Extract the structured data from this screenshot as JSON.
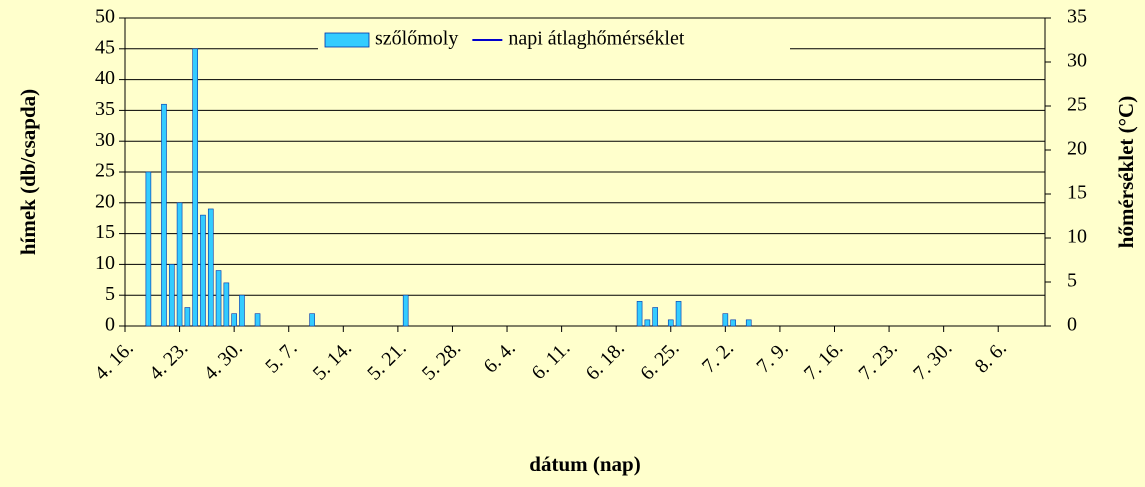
{
  "chart_data": {
    "type": "bar",
    "x": [
      "4. 19.",
      "4. 21.",
      "4. 22.",
      "4. 23.",
      "4. 24.",
      "4. 25.",
      "4. 26.",
      "4. 27.",
      "4. 28.",
      "4. 29.",
      "4. 30.",
      "5. 1.",
      "5. 3.",
      "5. 10.",
      "5. 22.",
      "6. 21.",
      "6. 22.",
      "6. 23.",
      "6. 25.",
      "6. 26.",
      "7. 2.",
      "7. 3.",
      "7. 5."
    ],
    "series": [
      {
        "name": "szőlőmoly",
        "color": "#33ccff",
        "values": [
          25,
          36,
          10,
          20,
          3,
          45,
          18,
          19,
          9,
          7,
          2,
          5,
          2,
          2,
          5,
          4,
          1,
          3,
          1,
          4,
          2,
          1,
          1
        ]
      },
      {
        "name": "napi átlaghőmérséklet",
        "color": "#0000cc",
        "axis": "y2",
        "values": [
          null,
          null,
          null,
          null,
          null,
          null,
          null,
          null,
          null,
          null,
          null,
          null,
          null,
          null,
          null,
          null,
          null,
          null,
          null,
          null,
          null,
          null,
          null
        ]
      }
    ],
    "xlim": [
      "4. 16.",
      "8. 12."
    ],
    "xticks": [
      "4. 16.",
      "4. 23.",
      "4. 30.",
      "5. 7.",
      "5. 14.",
      "5. 21.",
      "5. 28.",
      "6. 4.",
      "6. 11.",
      "6. 18.",
      "6. 25.",
      "7. 2.",
      "7. 9.",
      "7. 16.",
      "7. 23.",
      "7. 30.",
      "8. 6."
    ],
    "ylim": [
      0,
      50
    ],
    "yticks": [
      0,
      5,
      10,
      15,
      20,
      25,
      30,
      35,
      40,
      45,
      50
    ],
    "y2lim": [
      0,
      35
    ],
    "y2ticks": [
      0,
      5,
      10,
      15,
      20,
      25,
      30,
      35
    ],
    "ylabel": "hímek (db/csapda)",
    "y2label": "hőmérséklet (°C)",
    "xlabel": "dátum (nap)",
    "grid": true,
    "legend": "top"
  }
}
